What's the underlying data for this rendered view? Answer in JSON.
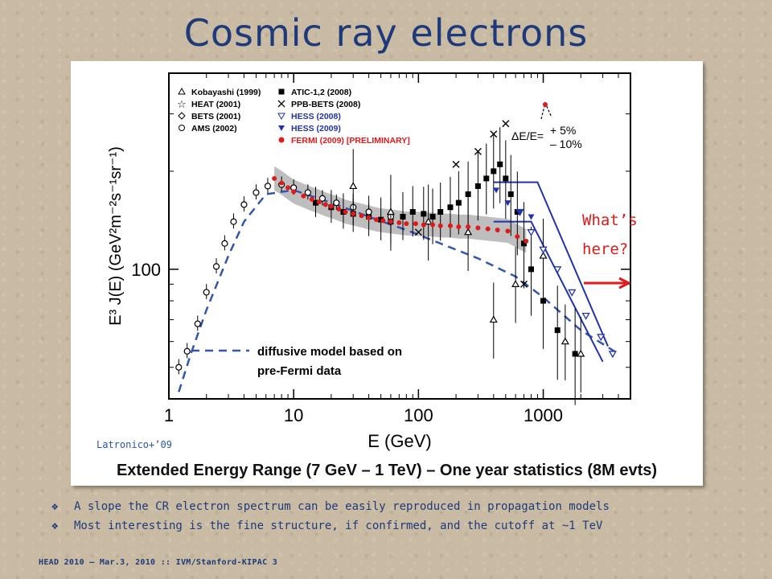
{
  "slide": {
    "title": "Cosmic ray electrons",
    "caption": "Extended Energy Range (7 GeV – 1 TeV) – One year statistics (8M evts)",
    "citation": "Latronico+’09",
    "question_line1": "What’s",
    "question_line2": "here?",
    "bullets": [
      "A slope the CR electron spectrum can be easily reproduced in propagation models",
      "Most interesting is the fine structure, if confirmed, and the cutoff at ~1 TeV"
    ],
    "footer": "HEAD 2010 – Mar.3, 2010 :: IVM/Stanford-KIPAC 3",
    "colors": {
      "title": "#1f3a7a",
      "fermi": "#e01a1a",
      "hess": "#2233aa",
      "model": "#3355aa"
    }
  },
  "chart_data": {
    "type": "scatter",
    "xlabel": "E (GeV)",
    "ylabel": "E³ J(E)  (GeV²m⁻²s⁻¹sr⁻¹)",
    "x_scale": "log",
    "y_scale": "log",
    "xlim": [
      1,
      5000
    ],
    "ylim": [
      40,
      400
    ],
    "x_ticks": [
      "1",
      "10",
      "100",
      "1000"
    ],
    "y_ticks": [
      "100"
    ],
    "energy_resolution_label": "ΔE/E=",
    "energy_resolution_values": [
      "+ 5%",
      "– 10%"
    ],
    "model_label_line1": "diffusive model based on",
    "model_label_line2": "pre-Fermi data",
    "legend": [
      {
        "label": "Kobayashi (1999)",
        "marker": "triangle-open"
      },
      {
        "label": "HEAT (2001)",
        "marker": "star-open"
      },
      {
        "label": "BETS (2001)",
        "marker": "diamond-open"
      },
      {
        "label": "AMS (2002)",
        "marker": "circle-open"
      },
      {
        "label": "ATIC-1,2 (2008)",
        "marker": "square-filled"
      },
      {
        "label": "PPB-BETS (2008)",
        "marker": "cross"
      },
      {
        "label": "HESS (2008)",
        "marker": "triangle-down-open"
      },
      {
        "label": "HESS (2009)",
        "marker": "triangle-down-filled"
      },
      {
        "label": "FERMI (2009) [PRELIMINARY]",
        "marker": "circle-red"
      }
    ],
    "series": [
      {
        "name": "FERMI (2009) [PRELIMINARY]",
        "x": [
          7,
          8,
          9,
          10,
          12,
          14,
          16,
          18,
          20,
          23,
          26,
          30,
          35,
          40,
          46,
          52,
          60,
          70,
          80,
          95,
          110,
          130,
          150,
          180,
          210,
          250,
          300,
          360,
          430,
          520,
          620,
          730
        ],
        "y": [
          190,
          184,
          178,
          173,
          168,
          164,
          161,
          158,
          156,
          153,
          150,
          148,
          146,
          144,
          142,
          141,
          140,
          139,
          138,
          138,
          137,
          137,
          136,
          136,
          135,
          135,
          134,
          133,
          132,
          131,
          126,
          122
        ]
      },
      {
        "name": "ATIC-1,2 (2008)",
        "x": [
          15,
          20,
          25,
          30,
          40,
          50,
          60,
          75,
          90,
          110,
          130,
          150,
          180,
          210,
          250,
          300,
          350,
          400,
          450,
          500,
          550,
          620,
          700,
          800,
          1000,
          1300,
          1800
        ],
        "y": [
          160,
          155,
          150,
          148,
          145,
          142,
          140,
          145,
          150,
          148,
          145,
          150,
          155,
          160,
          170,
          180,
          190,
          200,
          210,
          190,
          170,
          150,
          120,
          100,
          80,
          65,
          55
        ]
      },
      {
        "name": "HESS (2008)",
        "x": [
          650,
          800,
          1000,
          1300,
          1700,
          2200,
          2900,
          3600
        ],
        "y": [
          150,
          130,
          115,
          100,
          85,
          72,
          62,
          55
        ]
      },
      {
        "name": "HESS (2009)",
        "x": [
          420,
          520,
          650,
          800
        ],
        "y": [
          175,
          160,
          150,
          145
        ]
      },
      {
        "name": "AMS (2002)",
        "x": [
          1.2,
          1.4,
          1.7,
          2.0,
          2.4,
          2.8,
          3.3,
          4.0,
          5.0,
          6.2,
          8.0,
          10,
          13,
          17,
          22,
          30,
          40,
          60
        ],
        "y": [
          50,
          56,
          68,
          85,
          102,
          120,
          140,
          158,
          172,
          180,
          182,
          178,
          172,
          165,
          160,
          155,
          150,
          145
        ]
      },
      {
        "name": "Kobayashi (1999)",
        "x": [
          30,
          60,
          120,
          250,
          400,
          600,
          1000,
          1500,
          2000
        ],
        "y": [
          180,
          150,
          140,
          130,
          70,
          90,
          110,
          60,
          55
        ]
      },
      {
        "name": "PPB-BETS (2008)",
        "x": [
          100,
          200,
          300,
          400,
          500,
          700
        ],
        "y": [
          130,
          210,
          230,
          260,
          280,
          90
        ]
      },
      {
        "name": "diffusive model based on pre-Fermi data",
        "x": [
          1.2,
          1.5,
          2,
          3,
          4,
          6,
          10,
          20,
          40,
          80,
          150,
          300,
          600,
          1000,
          2000,
          4000
        ],
        "y": [
          42,
          55,
          75,
          110,
          140,
          170,
          175,
          160,
          145,
          132,
          120,
          108,
          95,
          82,
          65,
          55
        ]
      }
    ],
    "power_law_lines": [
      {
        "name": "upper",
        "x": [
          400,
          900,
          3300
        ],
        "y": [
          185,
          185,
          58
        ]
      },
      {
        "name": "lower",
        "x": [
          400,
          800,
          3000
        ],
        "y": [
          140,
          140,
          52
        ]
      }
    ]
  }
}
